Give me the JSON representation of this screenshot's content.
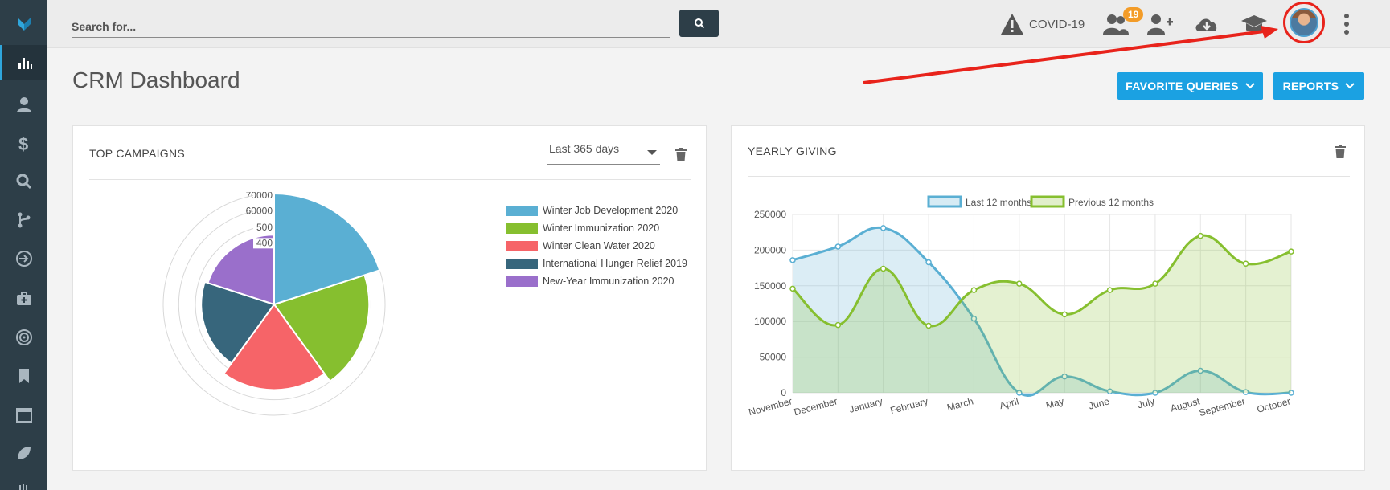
{
  "search": {
    "placeholder": "Search for..."
  },
  "topbar": {
    "covid_label": "COVID-19",
    "notifications_count": "19"
  },
  "page": {
    "title": "CRM Dashboard"
  },
  "buttons": {
    "favorite_queries": "FAVORITE QUERIES",
    "reports": "REPORTS"
  },
  "sidebar": {
    "items": [
      "logo-icon",
      "dashboard-icon",
      "contacts-icon",
      "donations-icon",
      "search-icon",
      "workflow-icon",
      "import-icon",
      "toolkit-icon",
      "target-icon",
      "bookmark-icon",
      "calendar-icon",
      "leaf-icon",
      "hands-icon"
    ]
  },
  "top_campaigns": {
    "title": "TOP CAMPAIGNS",
    "range": "Last 365 days",
    "chart_data": {
      "type": "polarArea",
      "scale_ticks": [
        "70000",
        "60000",
        "500",
        "400"
      ],
      "categories": [
        "Winter Job Development 2020",
        "Winter Immunization 2020",
        "Winter Clean Water 2020",
        "International Hunger Relief 2019",
        "New-Year Immunization 2020"
      ],
      "values": [
        70000,
        60000,
        54000,
        46000,
        44000
      ],
      "colors": [
        "#5aafd3",
        "#86bf2f",
        "#f66468",
        "#37667c",
        "#9a6fcb"
      ]
    }
  },
  "yearly_giving": {
    "title": "YEARLY GIVING",
    "chart_data": {
      "type": "area",
      "categories": [
        "November",
        "December",
        "January",
        "February",
        "March",
        "April",
        "May",
        "June",
        "July",
        "August",
        "September",
        "October"
      ],
      "series": [
        {
          "name": "Last 12 months",
          "values": [
            186000,
            205000,
            231000,
            183000,
            104000,
            0,
            23000,
            2000,
            0,
            31000,
            1000,
            0
          ],
          "color": "#5aafd3"
        },
        {
          "name": "Previous 12 months",
          "values": [
            146000,
            95000,
            174000,
            94000,
            144000,
            153000,
            110000,
            144000,
            153000,
            220000,
            181000,
            198000
          ],
          "color": "#86bf2f"
        }
      ],
      "ylim": [
        0,
        250000
      ],
      "yticks": [
        "250000",
        "200000",
        "150000",
        "100000",
        "50000",
        "0"
      ],
      "grid": true,
      "legend": "top"
    }
  }
}
